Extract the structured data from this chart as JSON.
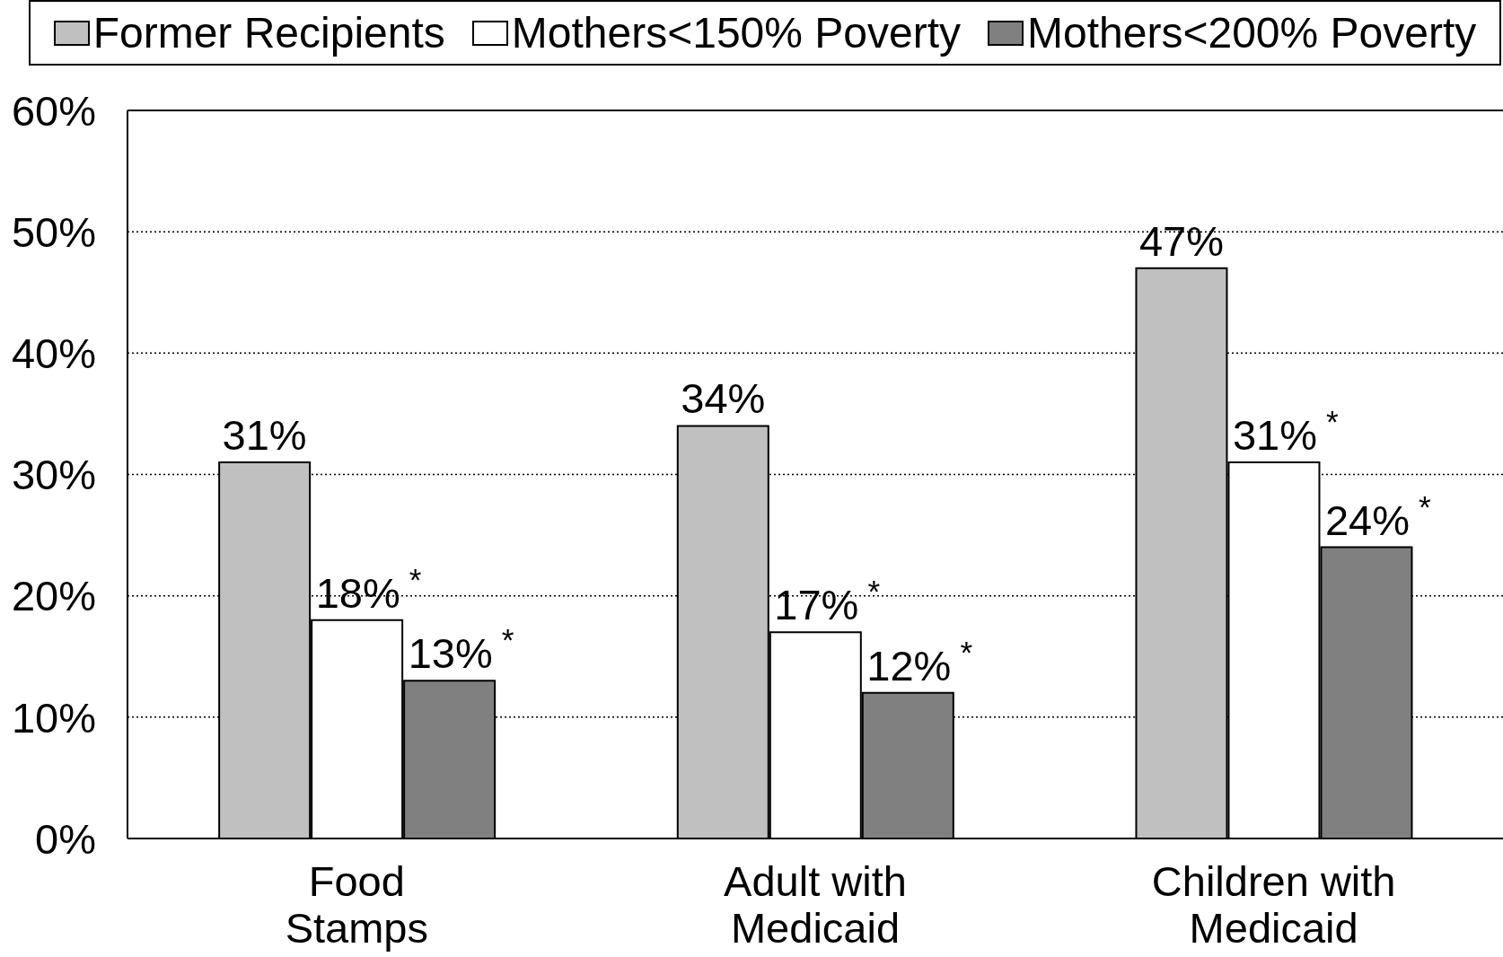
{
  "chart_data": {
    "type": "bar",
    "categories": [
      "Food Stamps",
      "Adult with Medicaid",
      "Children with Medicaid"
    ],
    "series": [
      {
        "name": "Former Recipients",
        "color": "#c0c0c0",
        "values": [
          31,
          34,
          47
        ],
        "value_labels": [
          "31%",
          "34%",
          "47%"
        ]
      },
      {
        "name": "Mothers<150% Poverty",
        "color": "#ffffff",
        "values": [
          18,
          17,
          31
        ],
        "value_labels": [
          "18%$^{*}$",
          "17%$^{*}$",
          "31%$^{*}$"
        ]
      },
      {
        "name": "Mothers<200% Poverty",
        "color": "#808080",
        "values": [
          13,
          12,
          24
        ],
        "value_labels": [
          "13%$^{*}$",
          "12%$^{*}$",
          "24%$^{*}$"
        ]
      }
    ],
    "ylim": [
      0,
      60
    ],
    "yticks": [
      {
        "value": 0,
        "label": "0%"
      },
      {
        "value": 10,
        "label": "10%"
      },
      {
        "value": 20,
        "label": "20%"
      },
      {
        "value": 30,
        "label": "30%"
      },
      {
        "value": 40,
        "label": "40%"
      },
      {
        "value": 50,
        "label": "50%"
      },
      {
        "value": 60,
        "label": "60%"
      }
    ],
    "grid": "y",
    "legend": "top"
  }
}
